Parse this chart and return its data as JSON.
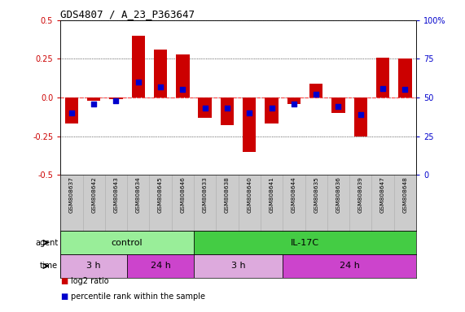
{
  "title": "GDS4807 / A_23_P363647",
  "samples": [
    "GSM808637",
    "GSM808642",
    "GSM808643",
    "GSM808634",
    "GSM808645",
    "GSM808646",
    "GSM808633",
    "GSM808638",
    "GSM808640",
    "GSM808641",
    "GSM808644",
    "GSM808635",
    "GSM808636",
    "GSM808639",
    "GSM808647",
    "GSM808648"
  ],
  "log2_ratio": [
    -0.17,
    -0.02,
    -0.01,
    0.4,
    0.31,
    0.28,
    -0.13,
    -0.18,
    -0.35,
    -0.17,
    -0.04,
    0.09,
    -0.1,
    -0.25,
    0.26,
    0.25
  ],
  "percentile": [
    40,
    46,
    48,
    60,
    57,
    55,
    43,
    43,
    40,
    43,
    46,
    52,
    44,
    39,
    56,
    55
  ],
  "ylim_left": [
    -0.5,
    0.5
  ],
  "ylim_right": [
    0,
    100
  ],
  "yticks_left": [
    -0.5,
    -0.25,
    0.0,
    0.25,
    0.5
  ],
  "yticks_right": [
    0,
    25,
    50,
    75,
    100
  ],
  "hline_color": "#ff4444",
  "bar_color": "#cc0000",
  "dot_color": "#0000cc",
  "agent_groups": [
    {
      "label": "control",
      "start": 0,
      "end": 6,
      "color": "#99ee99"
    },
    {
      "label": "IL-17C",
      "start": 6,
      "end": 16,
      "color": "#44cc44"
    }
  ],
  "time_groups": [
    {
      "label": "3 h",
      "start": 0,
      "end": 3,
      "color": "#ddaadd"
    },
    {
      "label": "24 h",
      "start": 3,
      "end": 6,
      "color": "#cc44cc"
    },
    {
      "label": "3 h",
      "start": 6,
      "end": 10,
      "color": "#ddaadd"
    },
    {
      "label": "24 h",
      "start": 10,
      "end": 16,
      "color": "#cc44cc"
    }
  ],
  "legend_items": [
    {
      "label": "log2 ratio",
      "color": "#cc0000"
    },
    {
      "label": "percentile rank within the sample",
      "color": "#0000cc"
    }
  ],
  "background_color": "#ffffff",
  "tick_label_color_left": "#cc0000",
  "tick_label_color_right": "#0000cc",
  "sample_bg": "#cccccc"
}
